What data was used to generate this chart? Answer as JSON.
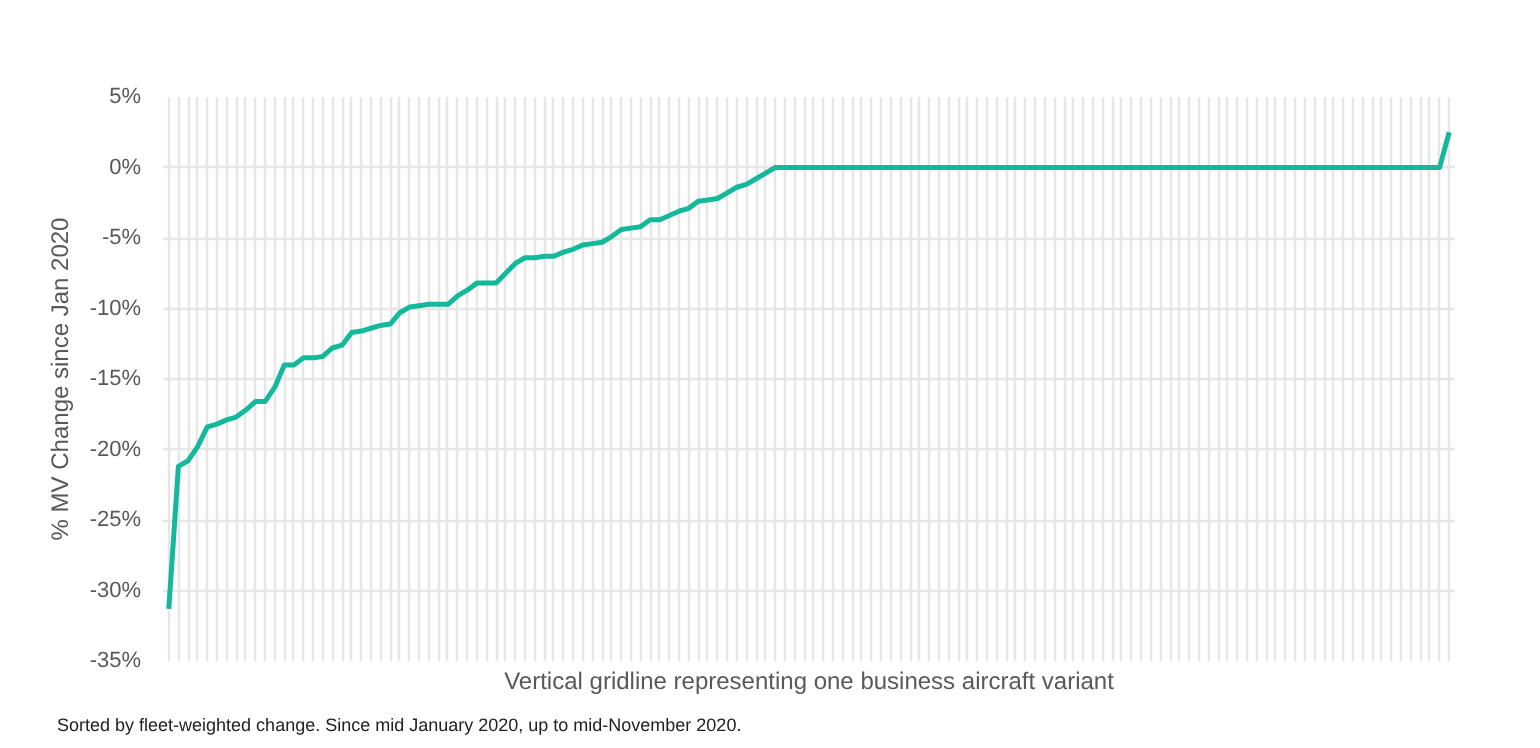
{
  "chart_data": {
    "type": "line",
    "xlabel": "Vertical gridline representing one business aircraft variant",
    "ylabel": "% MV Change since Jan 2020",
    "annotations": [
      "Sorted by fleet-weighted change. Since mid January 2020, up to mid-November 2020."
    ],
    "categories": [
      null,
      null,
      null,
      null,
      null,
      null,
      null,
      null,
      null,
      null,
      null,
      null,
      null,
      null,
      null,
      null,
      null,
      null,
      null,
      null,
      null,
      null,
      null,
      null,
      null,
      null,
      null,
      null,
      null,
      null,
      null,
      null,
      null,
      null,
      null,
      null,
      null,
      null,
      null,
      null,
      null,
      null,
      null,
      null,
      null,
      null,
      null,
      null,
      null,
      null,
      null,
      null,
      null,
      null,
      null,
      null,
      null,
      null,
      null,
      null,
      null,
      null,
      null,
      null,
      null,
      null,
      null,
      null,
      null,
      null,
      null,
      null,
      null,
      null,
      null,
      null,
      null,
      null,
      null,
      null,
      null,
      null,
      null,
      null,
      null,
      null,
      null,
      null,
      null,
      null,
      null,
      null,
      null,
      null,
      null,
      null,
      null,
      null,
      null,
      null,
      null,
      null,
      null,
      null,
      null,
      null,
      null,
      null,
      null,
      null,
      null,
      null,
      null,
      null,
      null,
      null,
      null,
      null,
      null,
      null,
      null,
      null,
      null,
      null,
      null,
      null,
      null,
      null,
      null,
      null,
      null,
      null,
      null,
      null
    ],
    "series": [
      {
        "color": "#14b89a",
        "values": [
          -31.3,
          -21.2,
          -20.8,
          -19.8,
          -18.4,
          -18.2,
          -17.9,
          -17.7,
          -17.2,
          -16.6,
          -16.6,
          -15.6,
          -14.0,
          -14.0,
          -13.5,
          -13.5,
          -13.4,
          -12.8,
          -12.6,
          -11.7,
          -11.6,
          -11.4,
          -11.2,
          -11.1,
          -10.3,
          -9.9,
          -9.8,
          -9.7,
          -9.7,
          -9.7,
          -9.1,
          -8.7,
          -8.2,
          -8.2,
          -8.2,
          -7.5,
          -6.8,
          -6.4,
          -6.4,
          -6.3,
          -6.3,
          -6.0,
          -5.8,
          -5.5,
          -5.4,
          -5.3,
          -4.9,
          -4.4,
          -4.3,
          -4.2,
          -3.7,
          -3.7,
          -3.4,
          -3.1,
          -2.9,
          -2.4,
          -2.3,
          -2.2,
          -1.8,
          -1.4,
          -1.2,
          -0.8,
          -0.4,
          0,
          0,
          0,
          0,
          0,
          0,
          0,
          0,
          0,
          0,
          0,
          0,
          0,
          0,
          0,
          0,
          0,
          0,
          0,
          0,
          0,
          0,
          0,
          0,
          0,
          0,
          0,
          0,
          0,
          0,
          0,
          0,
          0,
          0,
          0,
          0,
          0,
          0,
          0,
          0,
          0,
          0,
          0,
          0,
          0,
          0,
          0,
          0,
          0,
          0,
          0,
          0,
          0,
          0,
          0,
          0,
          0,
          0,
          0,
          0,
          0,
          0,
          0,
          0,
          0,
          0,
          0,
          0,
          0,
          0,
          2.5
        ]
      }
    ],
    "ylim": [
      -35,
      5
    ],
    "yticks": [
      {
        "value": 5,
        "label": "5%"
      },
      {
        "value": 0,
        "label": "0%"
      },
      {
        "value": -5,
        "label": "-5%"
      },
      {
        "value": -10,
        "label": "-10%"
      },
      {
        "value": -15,
        "label": "-15%"
      },
      {
        "value": -20,
        "label": "-20%"
      },
      {
        "value": -25,
        "label": "-25%"
      },
      {
        "value": -30,
        "label": "-30%"
      },
      {
        "value": -35,
        "label": "-35%"
      }
    ],
    "grid": true,
    "tick_labels": "y",
    "marker": "none",
    "line_style": "solid"
  }
}
